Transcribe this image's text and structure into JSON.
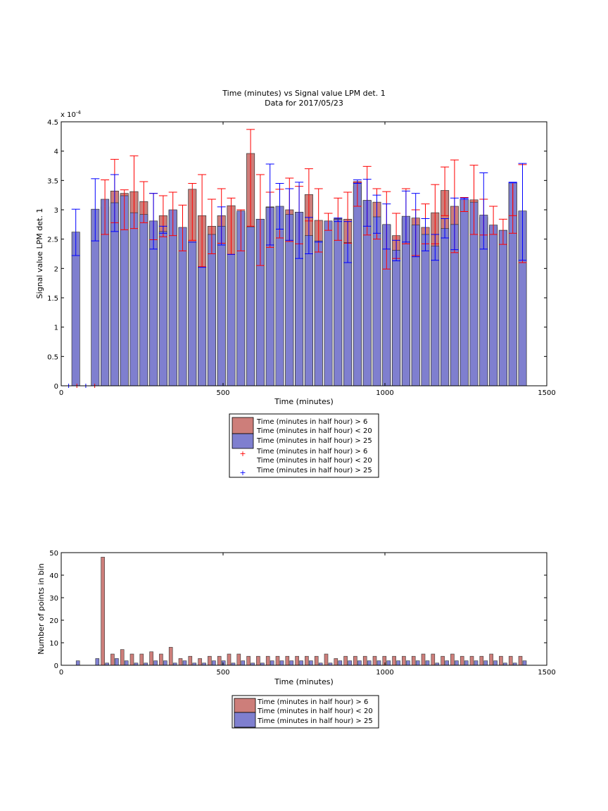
{
  "figure": {
    "title_line1": "Time (minutes) vs Signal value LPM det. 1",
    "title_line2": "Data for 2017/05/23"
  },
  "colors": {
    "red_bar": "#cd7e7a",
    "blue_bar": "#7f7fcf",
    "red_err": "#ff0000",
    "blue_err": "#0000ff"
  },
  "chart_data": [
    {
      "type": "bar",
      "xlabel": "Time (minutes)",
      "ylabel": "Signal value LPM det. 1",
      "exponent_label": "x 10",
      "exponent_power": "-4",
      "xlim": [
        0,
        1500
      ],
      "ylim": [
        0,
        4.5
      ],
      "xticks": [
        "0",
        "500",
        "1000",
        "1500"
      ],
      "yticks": [
        "0",
        "0.5",
        "1",
        "1.5",
        "2",
        "2.5",
        "3",
        "3.5",
        "4",
        "4.5"
      ],
      "x": [
        45,
        105,
        135,
        165,
        195,
        225,
        255,
        285,
        315,
        345,
        375,
        405,
        435,
        465,
        495,
        525,
        555,
        585,
        615,
        645,
        675,
        705,
        735,
        765,
        795,
        825,
        855,
        885,
        915,
        945,
        975,
        1005,
        1035,
        1065,
        1095,
        1125,
        1155,
        1185,
        1215,
        1245,
        1275,
        1305,
        1335,
        1365,
        1395,
        1425
      ],
      "series": [
        {
          "name": "Time (minutes in half hour) > 6 Time (minutes in half hour) < 20",
          "values": [
            0,
            0,
            3.05,
            3.32,
            3.28,
            3.31,
            3.14,
            2.74,
            2.9,
            2.99,
            2.69,
            3.35,
            2.9,
            2.72,
            2.9,
            3.07,
            2.95,
            3.96,
            2.84,
            3.05,
            3.05,
            3.0,
            2.96,
            3.26,
            2.82,
            2.76,
            2.85,
            2.84,
            3.4,
            3.16,
            3.13,
            2.74,
            2.56,
            2.85,
            2.86,
            2.7,
            2.95,
            3.33,
            3.06,
            3.17,
            3.17,
            2.87,
            2.7,
            2.65,
            3.45,
            2.97
          ],
          "err_low": [
            0,
            0,
            2.58,
            2.78,
            2.66,
            2.68,
            2.78,
            2.49,
            2.54,
            2.56,
            2.3,
            2.48,
            2.03,
            2.25,
            2.43,
            2.24,
            2.3,
            2.72,
            2.05,
            2.36,
            2.52,
            2.46,
            2.42,
            2.81,
            2.28,
            2.65,
            2.48,
            2.43,
            3.06,
            2.57,
            2.5,
            1.99,
            2.17,
            2.42,
            2.22,
            2.42,
            2.42,
            2.9,
            2.27,
            2.97,
            2.58,
            2.57,
            2.58,
            2.41,
            2.6,
            2.1
          ],
          "err_high": [
            0,
            0,
            3.51,
            3.86,
            3.34,
            3.92,
            3.48,
            3.28,
            3.24,
            3.3,
            3.08,
            3.45,
            3.6,
            3.18,
            3.36,
            3.2,
            3.0,
            4.37,
            3.6,
            3.3,
            3.35,
            3.54,
            3.4,
            3.7,
            3.36,
            2.94,
            3.2,
            3.3,
            3.47,
            3.74,
            3.36,
            3.31,
            2.94,
            3.36,
            3.0,
            3.1,
            3.43,
            3.73,
            3.85,
            3.21,
            3.76,
            3.18,
            3.06,
            2.84,
            2.9,
            3.77
          ]
        },
        {
          "name": "Time (minutes in half hour) > 25",
          "values": [
            2.62,
            3.01,
            3.18,
            3.12,
            3.24,
            2.95,
            2.92,
            2.81,
            2.63,
            3.0,
            2.7,
            2.45,
            2.02,
            2.58,
            2.72,
            2.24,
            2.98,
            2.71,
            2.84,
            3.04,
            3.06,
            2.92,
            2.96,
            2.56,
            2.47,
            2.81,
            2.84,
            2.44,
            3.48,
            3.16,
            2.88,
            2.75,
            2.31,
            2.89,
            2.74,
            2.58,
            2.38,
            2.68,
            2.75,
            3.18,
            3.13,
            2.91,
            2.74,
            2.65,
            3.46,
            2.98
          ],
          "err_low": [
            2.22,
            2.47,
            0,
            2.63,
            0,
            0,
            0,
            2.33,
            2.6,
            0,
            0,
            2.45,
            2.02,
            0,
            2.4,
            2.24,
            0,
            0,
            0,
            2.4,
            2.67,
            2.48,
            2.17,
            2.25,
            2.45,
            0,
            2.8,
            2.1,
            3.45,
            2.72,
            2.6,
            2.33,
            2.13,
            2.45,
            2.2,
            2.3,
            2.14,
            2.52,
            2.32,
            3.18,
            0,
            2.33,
            0,
            0,
            3.46,
            2.14
          ],
          "err_high": [
            3.01,
            3.53,
            0,
            3.6,
            0,
            0,
            0,
            3.28,
            2.72,
            0,
            0,
            0,
            0,
            0,
            3.05,
            0,
            0,
            0,
            0,
            3.78,
            3.45,
            3.36,
            3.47,
            2.87,
            0,
            0,
            2.86,
            2.8,
            3.51,
            3.52,
            3.25,
            3.1,
            2.48,
            3.32,
            3.28,
            2.85,
            2.58,
            2.85,
            3.2,
            3.2,
            0,
            3.63,
            0,
            0,
            3.47,
            3.79
          ]
        }
      ],
      "legend": [
        "Time (minutes in half hour) > 6",
        "Time (minutes in half hour) < 20",
        "Time (minutes in half hour) > 25",
        "Time (minutes in half hour) > 6",
        "Time (minutes in half hour) < 20",
        "Time (minutes in half hour) > 25"
      ],
      "legend_placement": "below"
    },
    {
      "type": "bar",
      "xlabel": "Time (minutes)",
      "ylabel": "Number of points in bin",
      "xlim": [
        0,
        1500
      ],
      "ylim": [
        0,
        50
      ],
      "xticks": [
        "0",
        "500",
        "1000",
        "1500"
      ],
      "yticks": [
        "0",
        "10",
        "20",
        "30",
        "40",
        "50"
      ],
      "x": [
        45,
        105,
        135,
        165,
        195,
        225,
        255,
        285,
        315,
        345,
        375,
        405,
        435,
        465,
        495,
        525,
        555,
        585,
        615,
        645,
        675,
        705,
        735,
        765,
        795,
        825,
        855,
        885,
        915,
        945,
        975,
        1005,
        1035,
        1065,
        1095,
        1125,
        1155,
        1185,
        1215,
        1245,
        1275,
        1305,
        1335,
        1365,
        1395,
        1425
      ],
      "series": [
        {
          "name": "Time (minutes in half hour) > 6 Time (minutes in half hour) < 20",
          "values": [
            0,
            0,
            48,
            5,
            7,
            5,
            5,
            6,
            5,
            8,
            3,
            4,
            3,
            4,
            4,
            5,
            5,
            4,
            4,
            4,
            4,
            4,
            4,
            4,
            4,
            5,
            3,
            4,
            4,
            4,
            4,
            4,
            4,
            4,
            4,
            5,
            5,
            4,
            5,
            4,
            4,
            4,
            5,
            4,
            4,
            4
          ]
        },
        {
          "name": "Time (minutes in half hour) > 25",
          "values": [
            2,
            3,
            1,
            3,
            2,
            1,
            1,
            2,
            2,
            1,
            2,
            1,
            1,
            2,
            2,
            1,
            2,
            1,
            1,
            2,
            2,
            2,
            2,
            2,
            1,
            1,
            2,
            2,
            2,
            2,
            2,
            2,
            2,
            2,
            2,
            2,
            1,
            2,
            2,
            2,
            2,
            2,
            2,
            1,
            1,
            2
          ]
        }
      ],
      "legend": [
        "Time (minutes in half hour) > 6",
        "Time (minutes in half hour) < 20",
        "Time (minutes in half hour) > 25"
      ],
      "legend_placement": "below"
    }
  ]
}
